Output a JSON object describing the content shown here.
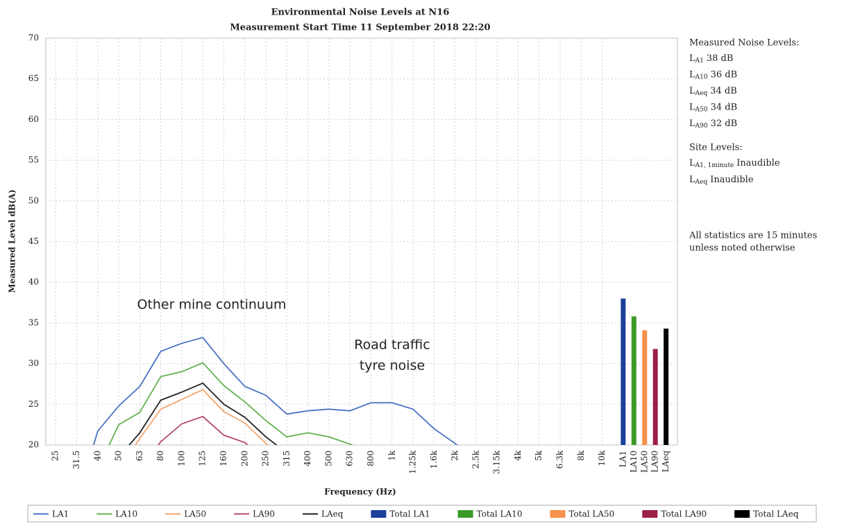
{
  "chart_data": {
    "type": "line",
    "title": [
      "Environmental Noise Levels at N16",
      "Measurement Start Time 11 September 2018 22:20"
    ],
    "xlabel": "Frequency (Hz)",
    "ylabel": "Measured Level dB(A)",
    "categories": [
      "25",
      "31.5",
      "40",
      "50",
      "63",
      "80",
      "100",
      "125",
      "160",
      "200",
      "250",
      "315",
      "400",
      "500",
      "630",
      "800",
      "1k",
      "1.25k",
      "1.6k",
      "2k",
      "2.5k",
      "3.15k",
      "4k",
      "5k",
      "6.3k",
      "8k",
      "10k",
      "LA1",
      "LA10",
      "LA50",
      "LA90",
      "LAeq"
    ],
    "ylim": [
      20,
      70
    ],
    "yticks": [
      20,
      25,
      30,
      35,
      40,
      45,
      50,
      55,
      60,
      65,
      70
    ],
    "grid": true,
    "legend": "bottom",
    "series": [
      {
        "name": "LA1",
        "type": "line",
        "color": "#4a72c4",
        "values": [
          null,
          13,
          21.7,
          24.8,
          27.2,
          31.5,
          32.5,
          33.2,
          30.0,
          27.2,
          26.1,
          23.8,
          24.2,
          24.4,
          24.2,
          25.2,
          25.2,
          24.4,
          22.0,
          20.2,
          18,
          null,
          null,
          null,
          null,
          null,
          null,
          null,
          null,
          null,
          null,
          null
        ]
      },
      {
        "name": "LA10",
        "type": "line",
        "color": "#62b14f",
        "values": [
          null,
          null,
          17,
          22.5,
          24.0,
          28.4,
          29.0,
          30.1,
          27.3,
          25.3,
          23.0,
          21.0,
          21.5,
          21.0,
          20.1,
          19,
          null,
          null,
          null,
          null,
          null,
          null,
          null,
          null,
          null,
          null,
          null,
          null,
          null,
          null,
          null,
          null
        ]
      },
      {
        "name": "LA50",
        "type": "line",
        "color": "#f4a46c",
        "values": [
          null,
          null,
          null,
          17,
          20.8,
          24.4,
          25.6,
          26.8,
          24.1,
          22.7,
          20.2,
          18,
          null,
          null,
          null,
          null,
          null,
          null,
          null,
          null,
          null,
          null,
          null,
          null,
          null,
          null,
          null,
          null,
          null,
          null,
          null,
          null
        ]
      },
      {
        "name": "LA90",
        "type": "line",
        "color": "#b5496b",
        "values": [
          null,
          null,
          null,
          null,
          17,
          20.4,
          22.6,
          23.5,
          21.2,
          20.3,
          18,
          null,
          null,
          null,
          null,
          null,
          null,
          null,
          null,
          null,
          null,
          null,
          null,
          null,
          null,
          null,
          null,
          null,
          null,
          null,
          null,
          null
        ]
      },
      {
        "name": "LAeq",
        "type": "line",
        "color": "#222222",
        "values": [
          null,
          null,
          null,
          18.5,
          21.5,
          25.5,
          26.5,
          27.6,
          25.0,
          23.4,
          21.0,
          19,
          null,
          null,
          null,
          null,
          null,
          null,
          null,
          null,
          null,
          null,
          null,
          null,
          null,
          null,
          null,
          null,
          null,
          null,
          null,
          null
        ]
      },
      {
        "name": "Total LA1",
        "type": "bar",
        "color": "#1c3f9c",
        "values": [
          null,
          null,
          null,
          null,
          null,
          null,
          null,
          null,
          null,
          null,
          null,
          null,
          null,
          null,
          null,
          null,
          null,
          null,
          null,
          null,
          null,
          null,
          null,
          null,
          null,
          null,
          null,
          38.0,
          null,
          null,
          null,
          null
        ]
      },
      {
        "name": "Total LA10",
        "type": "bar",
        "color": "#3b9a28",
        "values": [
          null,
          null,
          null,
          null,
          null,
          null,
          null,
          null,
          null,
          null,
          null,
          null,
          null,
          null,
          null,
          null,
          null,
          null,
          null,
          null,
          null,
          null,
          null,
          null,
          null,
          null,
          null,
          null,
          35.8,
          null,
          null,
          null
        ]
      },
      {
        "name": "Total LA50",
        "type": "bar",
        "color": "#f7904a",
        "values": [
          null,
          null,
          null,
          null,
          null,
          null,
          null,
          null,
          null,
          null,
          null,
          null,
          null,
          null,
          null,
          null,
          null,
          null,
          null,
          null,
          null,
          null,
          null,
          null,
          null,
          null,
          null,
          null,
          null,
          34.1,
          null,
          null
        ]
      },
      {
        "name": "Total LA90",
        "type": "bar",
        "color": "#9c1f45",
        "values": [
          null,
          null,
          null,
          null,
          null,
          null,
          null,
          null,
          null,
          null,
          null,
          null,
          null,
          null,
          null,
          null,
          null,
          null,
          null,
          null,
          null,
          null,
          null,
          null,
          null,
          null,
          null,
          null,
          null,
          null,
          31.8,
          null
        ]
      },
      {
        "name": "Total LAeq",
        "type": "bar",
        "color": "#000000",
        "values": [
          null,
          null,
          null,
          null,
          null,
          null,
          null,
          null,
          null,
          null,
          null,
          null,
          null,
          null,
          null,
          null,
          null,
          null,
          null,
          null,
          null,
          null,
          null,
          null,
          null,
          null,
          null,
          null,
          null,
          null,
          null,
          34.3
        ]
      }
    ],
    "annotations": [
      {
        "text": [
          "Other mine continuum"
        ]
      },
      {
        "text": [
          "Road traffic",
          "tyre noise"
        ]
      }
    ],
    "side_panel": {
      "measured_heading": "Measured Noise Levels:",
      "measured": [
        {
          "symbol": "L",
          "subscript": "A1",
          "text": "38 dB"
        },
        {
          "symbol": "L",
          "subscript": "A10",
          "text": "36 dB"
        },
        {
          "symbol": "L",
          "subscript": "Aeq",
          "text": "34 dB"
        },
        {
          "symbol": "L",
          "subscript": "A50",
          "text": "34 dB"
        },
        {
          "symbol": "L",
          "subscript": "A90",
          "text": "32 dB"
        }
      ],
      "site_heading": "Site Levels:",
      "site": [
        {
          "symbol": "L",
          "subscript": "A1, 1minute",
          "text": "Inaudible"
        },
        {
          "symbol": "L",
          "subscript": "Aeq",
          "text": "Inaudible"
        }
      ],
      "note": [
        "All statistics are 15 minutes",
        "unless noted otherwise"
      ]
    }
  }
}
